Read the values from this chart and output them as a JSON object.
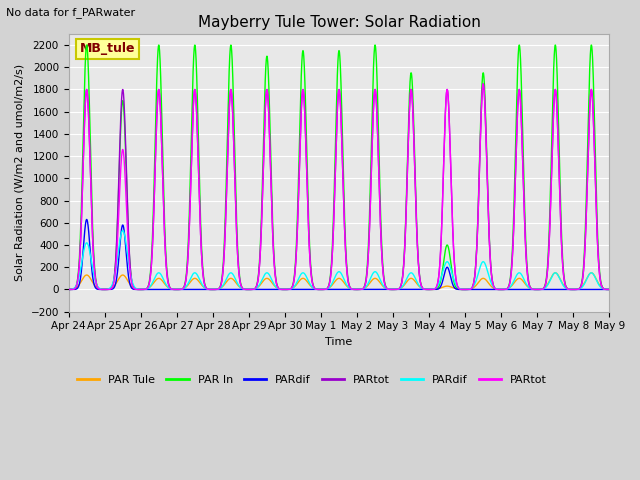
{
  "title": "Mayberry Tule Tower: Solar Radiation",
  "xlabel": "Time",
  "ylabel": "Solar Radiation (W/m2 and umol/m2/s)",
  "top_label": "No data for f_PARwater",
  "ylim": [
    -200,
    2300
  ],
  "yticks": [
    -200,
    0,
    200,
    400,
    600,
    800,
    1000,
    1200,
    1400,
    1600,
    1800,
    2000,
    2200
  ],
  "bg_color": "#d3d3d3",
  "plot_bg_color": "#e8e8e8",
  "legend_box_text": "MB_tule",
  "legend_box_text_color": "#800000",
  "legend_box_face": "#ffff99",
  "legend_box_edge": "#c8c800",
  "n_days": 15,
  "par_tule_color": "#ffa500",
  "par_in_color": "#00ff00",
  "pardif_b_color": "#0000ff",
  "partot_p_color": "#9900cc",
  "pardif_c_color": "#00ffff",
  "partot_m_color": "#ff00ff",
  "xtick_labels": [
    "Apr 24",
    "Apr 25",
    "Apr 26",
    "Apr 27",
    "Apr 28",
    "Apr 29",
    "Apr 30",
    "May 1",
    "May 2",
    "May 3",
    "May 4",
    "May 5",
    "May 6",
    "May 7",
    "May 8",
    "May 9"
  ],
  "title_fontsize": 11,
  "axis_label_fontsize": 8,
  "tick_fontsize": 7.5,
  "top_label_color": "#000000",
  "par_in_peaks": [
    2200,
    1700,
    2200,
    2200,
    2200,
    2100,
    2150,
    2150,
    2200,
    1950,
    400,
    1950,
    2200,
    2200,
    2200
  ],
  "partot_p_peaks": [
    1800,
    1800,
    1800,
    1800,
    1800,
    1800,
    1800,
    1800,
    1800,
    1800,
    1800,
    1850,
    1800,
    1800,
    1800
  ],
  "partot_m_peaks": [
    1800,
    1260,
    1800,
    1800,
    1800,
    1800,
    1800,
    1800,
    1800,
    1800,
    1800,
    1850,
    1800,
    1800,
    1800
  ],
  "pardif_b_peaks": [
    630,
    580,
    0,
    0,
    0,
    0,
    0,
    0,
    0,
    0,
    200,
    0,
    0,
    0,
    0
  ],
  "pardif_c_peaks": [
    420,
    530,
    150,
    150,
    150,
    150,
    150,
    160,
    160,
    150,
    250,
    250,
    150,
    150,
    150
  ],
  "par_tule_peaks": [
    130,
    130,
    100,
    100,
    100,
    100,
    100,
    100,
    100,
    100,
    30,
    100,
    100,
    150,
    150
  ]
}
